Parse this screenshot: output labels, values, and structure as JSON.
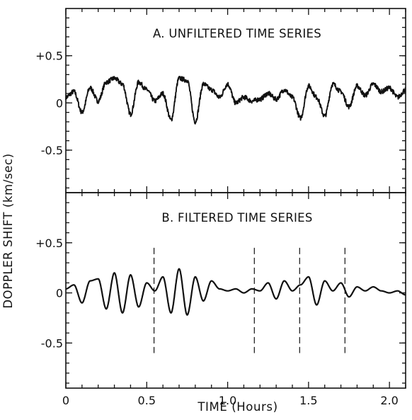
{
  "chart_data": {
    "type": "line",
    "xlabel": "TIME (Hours)",
    "ylabel": "DOPPLER SHIFT (km/sec)",
    "xlim": [
      0,
      2.1
    ],
    "x_ticks": [
      "0",
      "0.5",
      "1.0",
      "1.5",
      "2.0"
    ],
    "grid": false,
    "legend": "none",
    "panels": [
      {
        "title": "A. UNFILTERED TIME SERIES",
        "ylim": [
          -0.95,
          1.0
        ],
        "y_ticks": [
          "+0.5",
          "0",
          "-0.5"
        ],
        "series": [
          {
            "x": [
              0,
              0.05,
              0.1,
              0.15,
              0.2,
              0.25,
              0.3,
              0.35,
              0.4,
              0.45,
              0.5,
              0.55,
              0.6,
              0.65,
              0.7,
              0.75,
              0.8,
              0.85,
              0.9,
              0.95,
              1.0,
              1.05,
              1.1,
              1.15,
              1.2,
              1.25,
              1.3,
              1.35,
              1.4,
              1.45,
              1.5,
              1.55,
              1.6,
              1.65,
              1.7,
              1.75,
              1.8,
              1.85,
              1.9,
              1.95,
              2.0,
              2.05,
              2.1
            ],
            "y": [
              0.06,
              0.12,
              -0.1,
              0.16,
              0.02,
              0.22,
              0.26,
              0.2,
              -0.12,
              0.22,
              0.14,
              0.02,
              0.1,
              -0.18,
              0.26,
              0.24,
              -0.2,
              0.2,
              0.14,
              0.06,
              0.2,
              0.0,
              0.06,
              0.02,
              0.04,
              0.1,
              0.04,
              0.14,
              0.06,
              -0.16,
              0.18,
              0.06,
              -0.14,
              0.2,
              0.12,
              -0.04,
              0.18,
              0.08,
              0.2,
              0.12,
              0.16,
              0.06,
              0.14
            ]
          }
        ]
      },
      {
        "title": "B. FILTERED TIME SERIES",
        "ylim": [
          -0.95,
          1.0
        ],
        "y_ticks": [
          "+0.5",
          "0",
          "-0.5"
        ],
        "series": [
          {
            "x": [
              0,
              0.05,
              0.1,
              0.15,
              0.2,
              0.25,
              0.3,
              0.35,
              0.4,
              0.45,
              0.5,
              0.55,
              0.6,
              0.65,
              0.7,
              0.75,
              0.8,
              0.85,
              0.9,
              0.95,
              1.0,
              1.05,
              1.1,
              1.15,
              1.2,
              1.25,
              1.3,
              1.35,
              1.4,
              1.45,
              1.5,
              1.55,
              1.6,
              1.65,
              1.7,
              1.75,
              1.8,
              1.85,
              1.9,
              1.95,
              2.0,
              2.05,
              2.1
            ],
            "y": [
              0.04,
              0.08,
              -0.1,
              0.12,
              0.14,
              -0.16,
              0.2,
              -0.2,
              0.18,
              -0.14,
              0.1,
              0.02,
              0.16,
              -0.2,
              0.24,
              -0.22,
              0.16,
              -0.08,
              0.12,
              0.04,
              0.02,
              0.04,
              0.0,
              0.04,
              0.02,
              0.1,
              -0.06,
              0.12,
              0.02,
              0.08,
              0.16,
              -0.12,
              0.12,
              0.02,
              0.1,
              -0.04,
              0.06,
              0.02,
              0.06,
              0.02,
              0.0,
              0.02,
              -0.02
            ]
          }
        ],
        "vertical_markers": [
          0.545,
          1.165,
          1.445,
          1.725
        ]
      }
    ]
  }
}
